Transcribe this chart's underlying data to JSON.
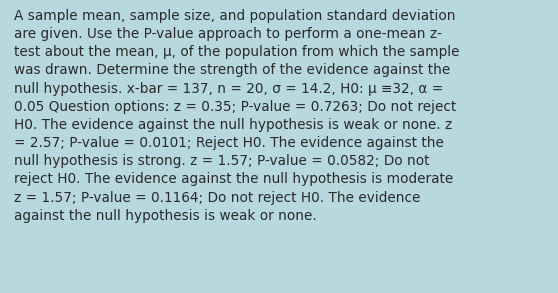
{
  "background_color": "#b8d8e0",
  "text_color": "#2a2a2a",
  "font_size": 9.8,
  "fig_width": 5.58,
  "fig_height": 2.93,
  "dpi": 100,
  "line1": "A sample mean, sample size, and population standard deviation",
  "line2": "are given. Use the P-value approach to perform a one-mean z-",
  "line3": "test about the mean, μ, of the population from which the sample",
  "line4": "was drawn. Determine the strength of the evidence against the",
  "line5": "null hypothesis. x-bar = 137, n = 20, σ = 14.2, H0: μ ≡32, α =",
  "line6": "0.05 Question options: z = 0.35; P-value = 0.7263; Do not reject",
  "line7": "H0. The evidence against the null hypothesis is weak or none. z",
  "line8": "= 2.57; P-value = 0.0101; Reject H0. The evidence against the",
  "line9": "null hypothesis is strong. z = 1.57; P-value = 0.0582; Do not",
  "line10": "reject H0. The evidence against the null hypothesis is moderate",
  "line11": "z = 1.57; P-value = 0.1164; Do not reject H0. The evidence",
  "line12": "against the null hypothesis is weak or none.",
  "linespacing": 1.38
}
